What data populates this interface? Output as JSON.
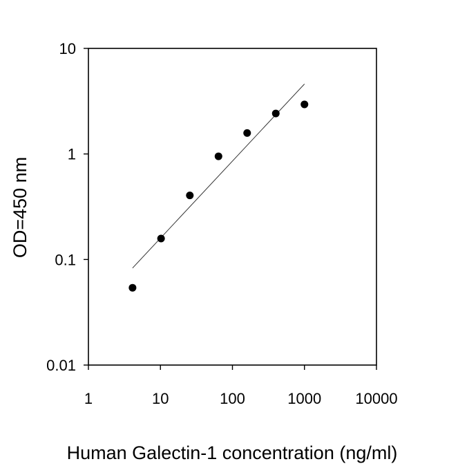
{
  "chart_data": {
    "type": "scatter",
    "title": "",
    "xlabel": "Human Galectin-1 concentration (ng/ml)",
    "ylabel": "OD=450 nm",
    "xscale": "log",
    "yscale": "log",
    "xlim": [
      1,
      10000
    ],
    "ylim": [
      0.01,
      10
    ],
    "x_ticks": [
      1,
      10,
      100,
      1000,
      10000
    ],
    "x_tick_labels": [
      "1",
      "10",
      "100",
      "1000",
      "10000"
    ],
    "y_ticks": [
      0.01,
      0.1,
      1,
      10
    ],
    "y_tick_labels": [
      "0.01",
      "0.1",
      "1",
      "10"
    ],
    "grid": false,
    "legend": "none",
    "series": [
      {
        "x": [
          4.1,
          10.2,
          25.6,
          64,
          160,
          400,
          1000
        ],
        "y": [
          0.054,
          0.158,
          0.405,
          0.95,
          1.58,
          2.42,
          2.95
        ]
      }
    ],
    "fit_line": {
      "x": [
        4.1,
        1000
      ],
      "y": [
        0.083,
        4.6
      ]
    }
  }
}
